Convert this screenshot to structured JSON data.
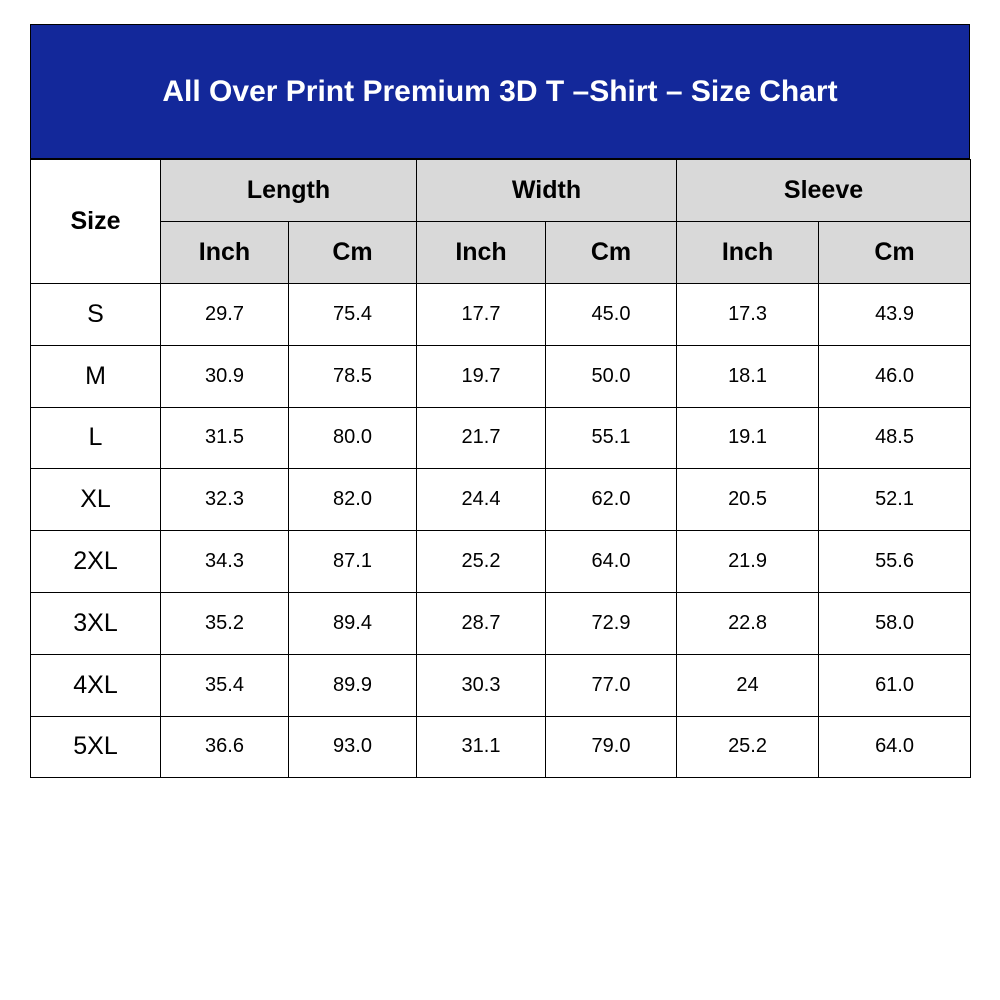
{
  "title": "All Over Print Premium 3D T –Shirt – Size Chart",
  "colors": {
    "header_bg": "#13289a",
    "subheader_bg": "#d9d9d9"
  },
  "headers": {
    "size": "Size",
    "groups": [
      "Length",
      "Width",
      "Sleeve"
    ],
    "units": [
      "Inch",
      "Cm",
      "Inch",
      "Cm",
      "Inch",
      "Cm"
    ]
  },
  "rows": [
    [
      "S",
      "29.7",
      "75.4",
      "17.7",
      "45.0",
      "17.3",
      "43.9"
    ],
    [
      "M",
      "30.9",
      "78.5",
      "19.7",
      "50.0",
      "18.1",
      "46.0"
    ],
    [
      "L",
      "31.5",
      "80.0",
      "21.7",
      "55.1",
      "19.1",
      "48.5"
    ],
    [
      "XL",
      "32.3",
      "82.0",
      "24.4",
      "62.0",
      "20.5",
      "52.1"
    ],
    [
      "2XL",
      "34.3",
      "87.1",
      "25.2",
      "64.0",
      "21.9",
      "55.6"
    ],
    [
      "3XL",
      "35.2",
      "89.4",
      "28.7",
      "72.9",
      "22.8",
      "58.0"
    ],
    [
      "4XL",
      "35.4",
      "89.9",
      "30.3",
      "77.0",
      "24",
      "61.0"
    ],
    [
      "5XL",
      "36.6",
      "93.0",
      "31.1",
      "79.0",
      "25.2",
      "64.0"
    ]
  ]
}
